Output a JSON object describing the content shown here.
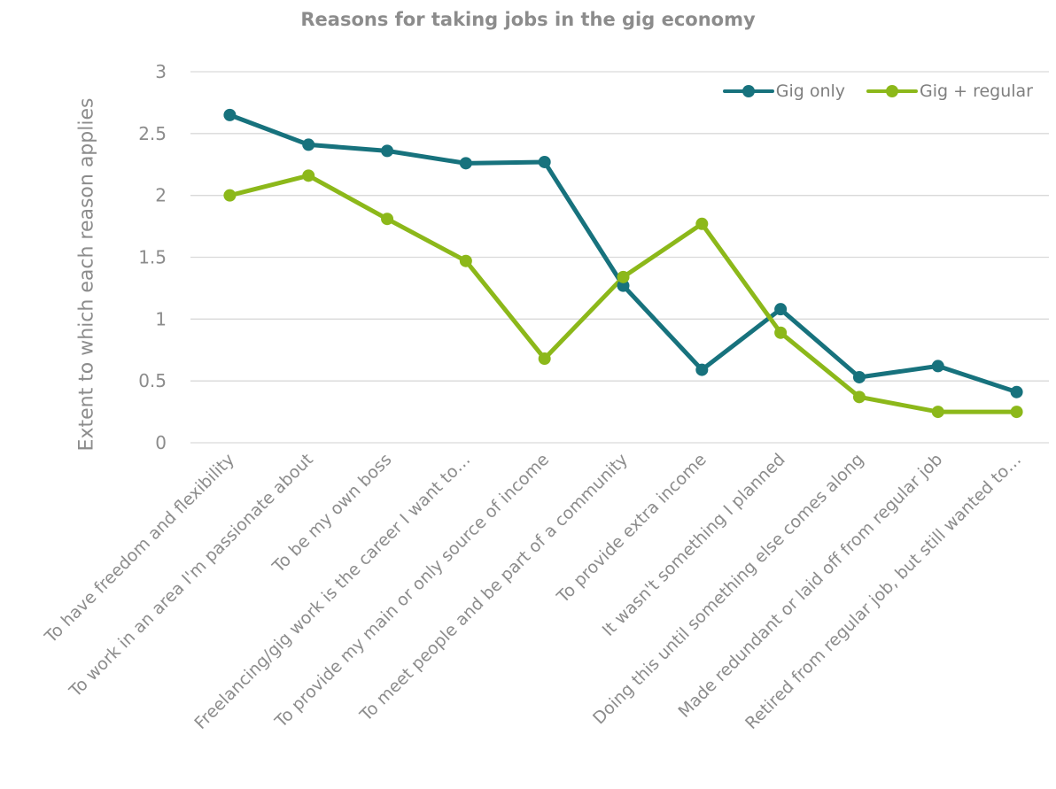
{
  "chart_data": {
    "type": "line",
    "title": "Reasons for taking jobs in the gig economy",
    "ylabel": "Extent to which each reason applies",
    "xlabel": "",
    "ylim": [
      0,
      3
    ],
    "yticks": [
      "0",
      "0.5",
      "1",
      "1.5",
      "2",
      "2.5",
      "3"
    ],
    "grid": true,
    "legend_position": "top-right",
    "categories": [
      "To have freedom and flexibility",
      "To work in an area I'm passionate about",
      "To be my own boss",
      "Freelancing/gig work is the career I want to…",
      "To provide my main or only source of income",
      "To meet people and be part of a community",
      "To provide extra income",
      "It wasn't something I planned",
      "Doing this until something else comes along",
      "Made redundant or laid off from regular job",
      "Retired from regular job, but still wanted to…"
    ],
    "series": [
      {
        "name": "Gig only",
        "color": "#17727d",
        "values": [
          2.65,
          2.41,
          2.36,
          2.26,
          2.27,
          1.27,
          0.59,
          1.08,
          0.53,
          0.62,
          0.41
        ]
      },
      {
        "name": "Gig + regular",
        "color": "#8cb81a",
        "values": [
          2.0,
          2.16,
          1.81,
          1.47,
          0.68,
          1.34,
          1.77,
          0.89,
          0.37,
          0.25,
          0.25
        ]
      }
    ]
  }
}
